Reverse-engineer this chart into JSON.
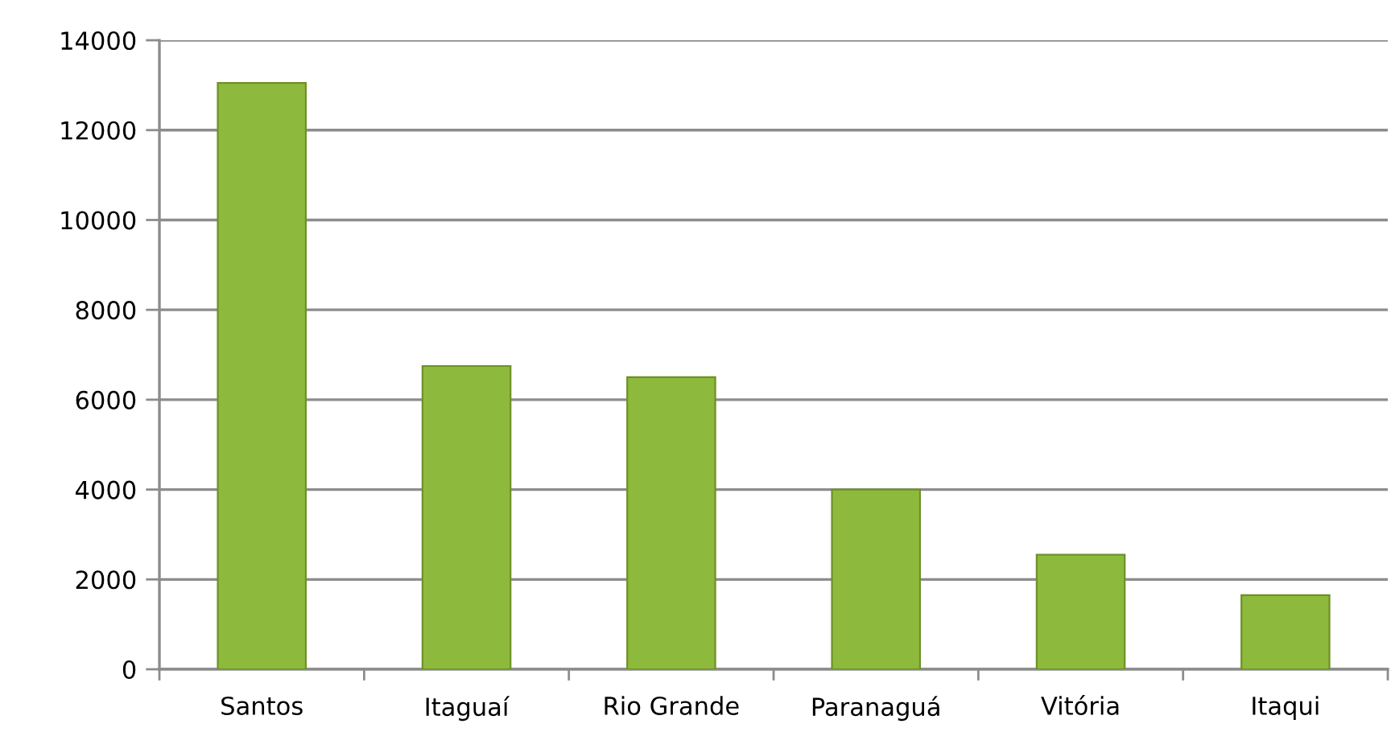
{
  "chart_data": {
    "type": "bar",
    "categories": [
      "Santos",
      "Itaguaí",
      "Rio Grande",
      "Paranaguá",
      "Vitória",
      "Itaqui"
    ],
    "values": [
      13050,
      6750,
      6500,
      4000,
      2550,
      1650
    ],
    "color": "#8dba3c",
    "ylim": [
      0,
      14000
    ],
    "yticks": [
      0,
      2000,
      4000,
      6000,
      8000,
      10000,
      12000,
      14000
    ],
    "grid": "y"
  }
}
